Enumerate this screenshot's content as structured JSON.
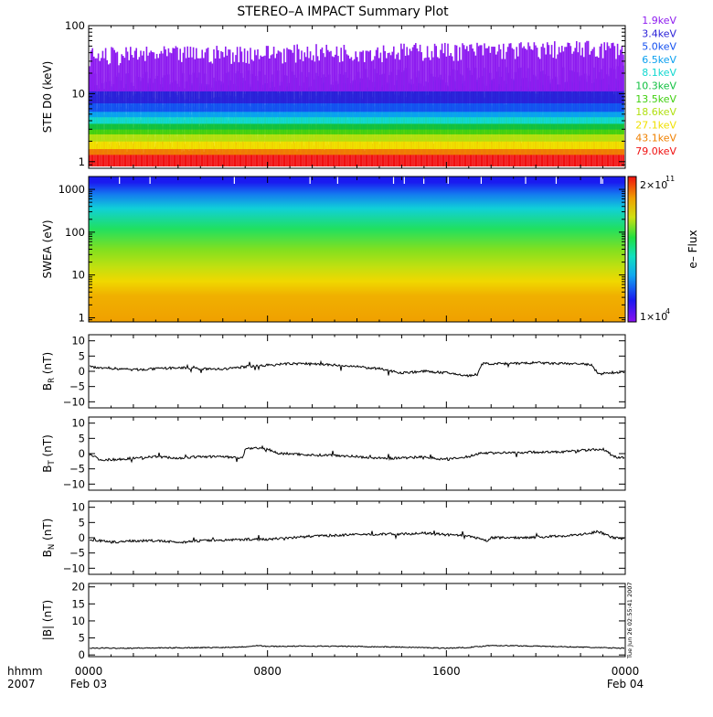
{
  "title": "STEREO–A IMPACT Summary Plot",
  "timestamp_label": "Tue Jun 26 02:55:41 2007",
  "time_axis": {
    "label_line1": "hhmm",
    "label_line2": "2007",
    "ticks": [
      {
        "hour": 0,
        "top": "0000",
        "bottom": "Feb 03"
      },
      {
        "hour": 8,
        "top": "0800",
        "bottom": ""
      },
      {
        "hour": 16,
        "top": "1600",
        "bottom": ""
      },
      {
        "hour": 24,
        "top": "0000",
        "bottom": "Feb 04"
      }
    ],
    "range_hours": [
      0,
      24
    ]
  },
  "chart_data": [
    {
      "type": "line",
      "id": "ste",
      "ylabel": "STE D0 (keV)",
      "yscale": "log",
      "ylim": [
        0.8,
        100
      ],
      "ytick_labels": [
        "1",
        "10",
        "100"
      ],
      "ytick_values": [
        1,
        10,
        100
      ],
      "channels": [
        {
          "name": "1.9keV",
          "color": "#8e1cf0",
          "level": 28
        },
        {
          "name": "3.4keV",
          "color": "#2a20d8",
          "level": 12
        },
        {
          "name": "5.0keV",
          "color": "#1450f0",
          "level": 8
        },
        {
          "name": "6.5keV",
          "color": "#0aa0f0",
          "level": 6
        },
        {
          "name": "8.1keV",
          "color": "#12d8d0",
          "level": 5
        },
        {
          "name": "10.3keV",
          "color": "#10c040",
          "level": 4
        },
        {
          "name": "13.5keV",
          "color": "#40d010",
          "level": 3.3
        },
        {
          "name": "18.6keV",
          "color": "#b0e010",
          "level": 2.8
        },
        {
          "name": "27.1keV",
          "color": "#f0e000",
          "level": 2.2
        },
        {
          "name": "43.1keV",
          "color": "#f08000",
          "level": 1.7
        },
        {
          "name": "79.0keV",
          "color": "#f01010",
          "level": 1.4
        }
      ]
    },
    {
      "type": "heatmap",
      "id": "swea",
      "ylabel": "SWEA (eV)",
      "yscale": "log",
      "ylim": [
        0.8,
        2000
      ],
      "ytick_labels": [
        "1",
        "10",
        "100",
        "1000"
      ],
      "ytick_values": [
        1,
        10,
        100,
        1000
      ],
      "colorbar": {
        "label": "e– Flux",
        "max_label": "2×10",
        "max_exp": "11",
        "min_label": "1×10",
        "min_exp": "4"
      }
    },
    {
      "type": "line",
      "id": "br",
      "ylabel": "B",
      "ylabel_sub": "R",
      "ylabel_unit": "(nT)",
      "ylim": [
        -12,
        12
      ],
      "ytick_labels": [
        "10",
        "5",
        "0",
        "−5",
        "−10"
      ],
      "ytick_values": [
        10,
        5,
        0,
        -5,
        -10
      ],
      "segments": [
        [
          0,
          1.5
        ],
        [
          1,
          1
        ],
        [
          2,
          0.5
        ],
        [
          3,
          0.8
        ],
        [
          4,
          1.2
        ],
        [
          5,
          0.8
        ],
        [
          6,
          0.7
        ],
        [
          7,
          1.5
        ],
        [
          8,
          2
        ],
        [
          9,
          2.5
        ],
        [
          10,
          2.5
        ],
        [
          11,
          2
        ],
        [
          12,
          1.5
        ],
        [
          13,
          0.8
        ],
        [
          14,
          -0.5
        ],
        [
          15,
          0
        ],
        [
          16,
          -0.5
        ],
        [
          17,
          -1.5
        ],
        [
          17.4,
          -1
        ],
        [
          17.6,
          2.5
        ],
        [
          19,
          2.5
        ],
        [
          20,
          2.8
        ],
        [
          21,
          2.5
        ],
        [
          22,
          2.5
        ],
        [
          22.5,
          2
        ],
        [
          22.8,
          -1
        ],
        [
          23.2,
          -0.5
        ],
        [
          24,
          -0.2
        ]
      ]
    },
    {
      "type": "line",
      "id": "bt",
      "ylabel": "B",
      "ylabel_sub": "T",
      "ylabel_unit": "(nT)",
      "ylim": [
        -12,
        12
      ],
      "ytick_labels": [
        "10",
        "5",
        "0",
        "−5",
        "−10"
      ],
      "ytick_values": [
        10,
        5,
        0,
        -5,
        -10
      ],
      "segments": [
        [
          0,
          0
        ],
        [
          0.5,
          -2
        ],
        [
          1,
          -2
        ],
        [
          2,
          -1.5
        ],
        [
          3,
          -1
        ],
        [
          4,
          -1.5
        ],
        [
          5,
          -1
        ],
        [
          6,
          -1
        ],
        [
          6.9,
          -1.5
        ],
        [
          7,
          1.8
        ],
        [
          8,
          1.5
        ],
        [
          8.5,
          0
        ],
        [
          9,
          0
        ],
        [
          10,
          -0.5
        ],
        [
          11,
          -0.5
        ],
        [
          12,
          -1
        ],
        [
          13,
          -1.5
        ],
        [
          14,
          -1.5
        ],
        [
          15,
          -1
        ],
        [
          16,
          -2
        ],
        [
          17,
          -1
        ],
        [
          17.5,
          0.2
        ],
        [
          19,
          0.3
        ],
        [
          20,
          0.5
        ],
        [
          21,
          0.5
        ],
        [
          22,
          1
        ],
        [
          23,
          1.5
        ],
        [
          23.5,
          -1
        ],
        [
          24,
          -1.5
        ]
      ]
    },
    {
      "type": "line",
      "id": "bn",
      "ylabel": "B",
      "ylabel_sub": "N",
      "ylabel_unit": "(nT)",
      "ylim": [
        -12,
        12
      ],
      "ytick_labels": [
        "10",
        "5",
        "0",
        "−5",
        "−10"
      ],
      "ytick_values": [
        10,
        5,
        0,
        -5,
        -10
      ],
      "segments": [
        [
          0,
          -0.5
        ],
        [
          1,
          -1.5
        ],
        [
          2,
          -1
        ],
        [
          3,
          -1
        ],
        [
          4,
          -1.5
        ],
        [
          5,
          -1
        ],
        [
          6,
          -0.8
        ],
        [
          7,
          -0.5
        ],
        [
          8,
          -0.5
        ],
        [
          9,
          0
        ],
        [
          10,
          0.5
        ],
        [
          11,
          0.8
        ],
        [
          12,
          1
        ],
        [
          13,
          1.2
        ],
        [
          14,
          1.2
        ],
        [
          15,
          1.5
        ],
        [
          16,
          1
        ],
        [
          17,
          0.5
        ],
        [
          17.8,
          -1
        ],
        [
          18,
          0
        ],
        [
          19,
          0
        ],
        [
          20,
          0.2
        ],
        [
          21,
          0.5
        ],
        [
          22,
          1
        ],
        [
          22.8,
          2
        ],
        [
          23.5,
          0
        ],
        [
          24,
          -0.5
        ]
      ]
    },
    {
      "type": "line",
      "id": "bmag",
      "ylabel": "|B| (nT)",
      "ylim": [
        -0.5,
        21
      ],
      "ytick_labels": [
        "20",
        "15",
        "10",
        "5",
        "0"
      ],
      "ytick_values": [
        20,
        15,
        10,
        5,
        0
      ],
      "segments": [
        [
          0,
          2
        ],
        [
          2,
          2
        ],
        [
          4,
          2.1
        ],
        [
          6,
          2.2
        ],
        [
          7,
          2.4
        ],
        [
          7.5,
          2.8
        ],
        [
          8,
          2.5
        ],
        [
          10,
          2.6
        ],
        [
          12,
          2.5
        ],
        [
          14,
          2.3
        ],
        [
          16,
          2
        ],
        [
          17,
          2.2
        ],
        [
          18,
          2.8
        ],
        [
          20,
          2.6
        ],
        [
          22,
          2.3
        ],
        [
          23,
          2.1
        ],
        [
          24,
          2
        ]
      ]
    }
  ]
}
